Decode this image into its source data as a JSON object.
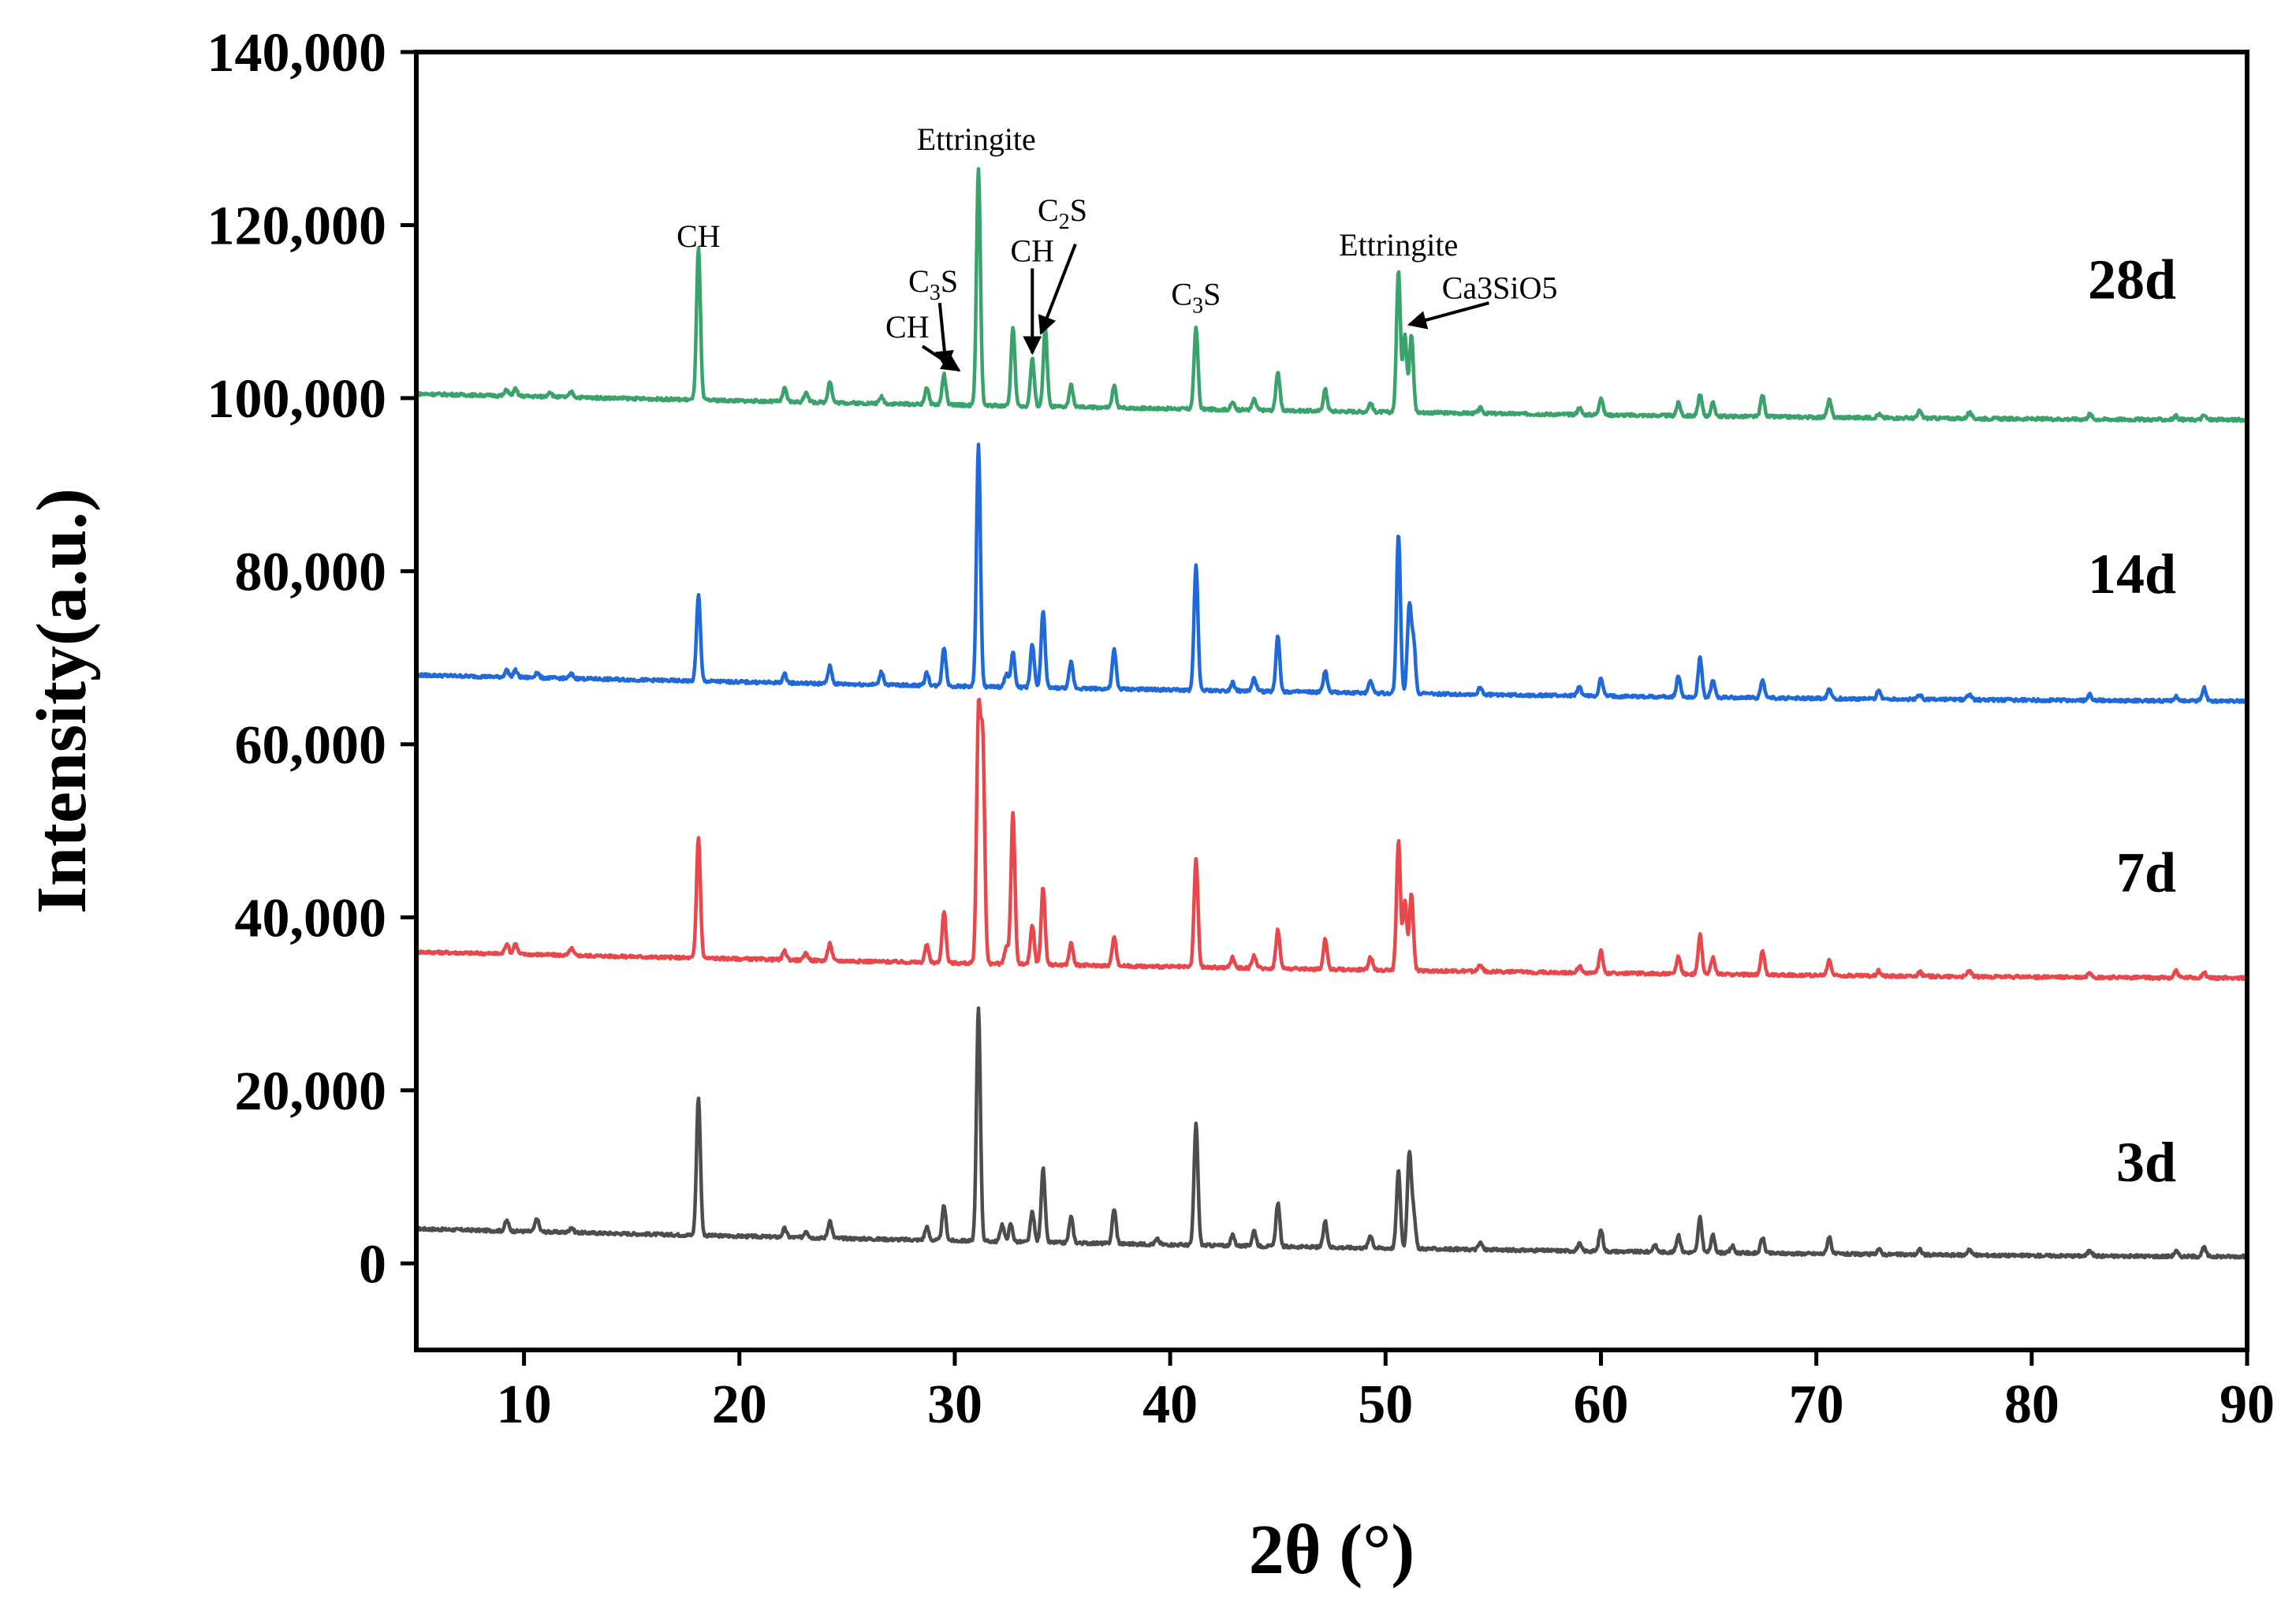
{
  "chart_data": {
    "type": "line",
    "title": "",
    "xlabel": "2θ (°)",
    "ylabel": "Intensity(a.u.)",
    "xlim": [
      5,
      90
    ],
    "ylim": [
      -10000,
      140000
    ],
    "xticks": [
      10,
      20,
      30,
      40,
      50,
      60,
      70,
      80,
      90
    ],
    "yticks": [
      0,
      20000,
      40000,
      60000,
      80000,
      100000,
      120000,
      140000
    ],
    "ytick_labels": [
      "0",
      "20,000",
      "40,000",
      "60,000",
      "80,000",
      "100,000",
      "120,000",
      "140,000"
    ],
    "grid": false,
    "series": [
      {
        "name": "3d",
        "color": "#4d4d4d",
        "baseline_start": 4000,
        "baseline_end": 800,
        "peaks": [
          [
            9.2,
            1200
          ],
          [
            10.6,
            1500
          ],
          [
            12.2,
            600
          ],
          [
            18.1,
            16000
          ],
          [
            22.1,
            1000
          ],
          [
            23.1,
            800
          ],
          [
            24.2,
            2000
          ],
          [
            28.7,
            1500
          ],
          [
            29.5,
            4000
          ],
          [
            31.1,
            27000
          ],
          [
            32.2,
            2000
          ],
          [
            32.6,
            2000
          ],
          [
            33.6,
            3500
          ],
          [
            34.1,
            8500
          ],
          [
            35.4,
            3000
          ],
          [
            37.4,
            4000
          ],
          [
            39.4,
            600
          ],
          [
            41.2,
            14000
          ],
          [
            42.9,
            1200
          ],
          [
            43.9,
            1800
          ],
          [
            45.0,
            5000
          ],
          [
            47.2,
            3000
          ],
          [
            49.3,
            1500
          ],
          [
            50.6,
            9000
          ],
          [
            51.1,
            11000
          ],
          [
            51.3,
            4000
          ],
          [
            54.4,
            800
          ],
          [
            59.0,
            800
          ],
          [
            60.0,
            2500
          ],
          [
            62.5,
            800
          ],
          [
            63.6,
            2000
          ],
          [
            64.6,
            4000
          ],
          [
            65.2,
            2000
          ],
          [
            66.1,
            800
          ],
          [
            67.5,
            1800
          ],
          [
            70.6,
            2000
          ],
          [
            72.9,
            600
          ],
          [
            74.8,
            600
          ],
          [
            77.1,
            700
          ],
          [
            82.7,
            700
          ],
          [
            86.7,
            600
          ],
          [
            88.0,
            1000
          ]
        ]
      },
      {
        "name": "7d",
        "color": "#e8474b",
        "baseline_start": 36000,
        "baseline_end": 33000,
        "peaks": [
          [
            9.2,
            1200
          ],
          [
            9.6,
            1200
          ],
          [
            12.2,
            800
          ],
          [
            18.1,
            14000
          ],
          [
            22.1,
            1000
          ],
          [
            23.1,
            800
          ],
          [
            24.2,
            2000
          ],
          [
            28.7,
            2000
          ],
          [
            29.5,
            6000
          ],
          [
            31.1,
            28000
          ],
          [
            31.3,
            25000
          ],
          [
            32.4,
            2000
          ],
          [
            32.7,
            17500
          ],
          [
            33.6,
            4500
          ],
          [
            34.1,
            9000
          ],
          [
            35.4,
            2500
          ],
          [
            37.4,
            3500
          ],
          [
            41.2,
            12500
          ],
          [
            42.9,
            1200
          ],
          [
            43.9,
            1500
          ],
          [
            45.0,
            4500
          ],
          [
            47.2,
            3500
          ],
          [
            49.3,
            1500
          ],
          [
            50.6,
            15000
          ],
          [
            50.9,
            8000
          ],
          [
            51.2,
            9000
          ],
          [
            54.4,
            800
          ],
          [
            59.0,
            800
          ],
          [
            60.0,
            2500
          ],
          [
            63.6,
            2000
          ],
          [
            64.6,
            4500
          ],
          [
            65.2,
            2000
          ],
          [
            67.5,
            2800
          ],
          [
            70.6,
            1800
          ],
          [
            72.9,
            600
          ],
          [
            74.8,
            500
          ],
          [
            77.1,
            700
          ],
          [
            82.7,
            600
          ],
          [
            86.7,
            800
          ],
          [
            88.0,
            600
          ]
        ]
      },
      {
        "name": "14d",
        "color": "#1f69d8",
        "baseline_start": 68000,
        "baseline_end": 65000,
        "peaks": [
          [
            9.2,
            800
          ],
          [
            9.6,
            800
          ],
          [
            10.6,
            600
          ],
          [
            12.2,
            500
          ],
          [
            18.1,
            10000
          ],
          [
            22.1,
            1000
          ],
          [
            24.2,
            2000
          ],
          [
            26.6,
            1500
          ],
          [
            28.7,
            1500
          ],
          [
            29.5,
            4500
          ],
          [
            31.1,
            28000
          ],
          [
            32.4,
            1500
          ],
          [
            32.7,
            4000
          ],
          [
            33.6,
            5000
          ],
          [
            34.1,
            9000
          ],
          [
            35.4,
            3000
          ],
          [
            37.4,
            4500
          ],
          [
            41.2,
            14500
          ],
          [
            42.9,
            1000
          ],
          [
            43.9,
            1500
          ],
          [
            45.0,
            6500
          ],
          [
            47.2,
            2500
          ],
          [
            49.3,
            1500
          ],
          [
            50.6,
            18500
          ],
          [
            51.1,
            10000
          ],
          [
            51.3,
            6000
          ],
          [
            54.4,
            800
          ],
          [
            59.0,
            1000
          ],
          [
            60.0,
            2000
          ],
          [
            63.6,
            2500
          ],
          [
            64.6,
            4500
          ],
          [
            65.2,
            2000
          ],
          [
            67.5,
            2000
          ],
          [
            70.6,
            1200
          ],
          [
            72.9,
            1000
          ],
          [
            74.8,
            500
          ],
          [
            77.1,
            600
          ],
          [
            82.7,
            700
          ],
          [
            86.7,
            500
          ],
          [
            88.0,
            1500
          ]
        ]
      },
      {
        "name": "28d",
        "color": "#3aa36b",
        "baseline_start": 100500,
        "baseline_end": 97500,
        "peaks": [
          [
            9.2,
            700
          ],
          [
            9.6,
            800
          ],
          [
            11.2,
            600
          ],
          [
            12.2,
            600
          ],
          [
            18.1,
            17500
          ],
          [
            22.1,
            1500
          ],
          [
            23.1,
            1200
          ],
          [
            24.2,
            2500
          ],
          [
            26.6,
            800
          ],
          [
            28.7,
            2000
          ],
          [
            29.5,
            3500
          ],
          [
            31.1,
            27500
          ],
          [
            32.7,
            9000
          ],
          [
            33.6,
            5500
          ],
          [
            34.2,
            9000
          ],
          [
            35.4,
            2500
          ],
          [
            37.4,
            2500
          ],
          [
            41.2,
            9500
          ],
          [
            42.9,
            800
          ],
          [
            43.9,
            1200
          ],
          [
            45.0,
            4500
          ],
          [
            47.2,
            2500
          ],
          [
            49.3,
            1000
          ],
          [
            50.6,
            16500
          ],
          [
            50.9,
            9000
          ],
          [
            51.2,
            9000
          ],
          [
            54.4,
            600
          ],
          [
            59.0,
            800
          ],
          [
            60.0,
            2000
          ],
          [
            63.6,
            1500
          ],
          [
            64.6,
            2500
          ],
          [
            65.2,
            1500
          ],
          [
            67.5,
            2500
          ],
          [
            70.6,
            2000
          ],
          [
            72.9,
            400
          ],
          [
            74.8,
            800
          ],
          [
            77.1,
            700
          ],
          [
            82.7,
            600
          ],
          [
            86.7,
            400
          ],
          [
            88.0,
            500
          ]
        ]
      }
    ],
    "annotations": [
      {
        "text": "CH",
        "x": 18.1,
        "y": 117500
      },
      {
        "text": "Ettringite",
        "x": 31.0,
        "y": 128700
      },
      {
        "text": "C₃S",
        "x": 29.0,
        "y": 112300
      },
      {
        "text": "CH",
        "x": 27.8,
        "y": 107000
      },
      {
        "text": "CH",
        "x": 33.6,
        "y": 115800
      },
      {
        "text": "C₂S",
        "x": 35.0,
        "y": 120500
      },
      {
        "text": "C₃S",
        "x": 41.2,
        "y": 110800
      },
      {
        "text": "Ettringite",
        "x": 50.6,
        "y": 116500
      },
      {
        "text": "Ca3SiO5",
        "x": 55.3,
        "y": 111500
      }
    ],
    "arrows": [
      {
        "from": [
          28.5,
          106000
        ],
        "to": [
          30.2,
          103200
        ]
      },
      {
        "from": [
          29.3,
          111000
        ],
        "to": [
          29.6,
          103500
        ]
      },
      {
        "from": [
          33.6,
          115000
        ],
        "to": [
          33.6,
          105200
        ]
      },
      {
        "from": [
          35.6,
          117800
        ],
        "to": [
          34.0,
          107500
        ]
      },
      {
        "from": [
          54.8,
          111000
        ],
        "to": [
          51.1,
          108500
        ]
      }
    ],
    "series_labels": [
      {
        "text": "28d",
        "y": 111500
      },
      {
        "text": "14d",
        "y": 77500
      },
      {
        "text": "7d",
        "y": 43000
      },
      {
        "text": "3d",
        "y": 9500
      }
    ]
  }
}
